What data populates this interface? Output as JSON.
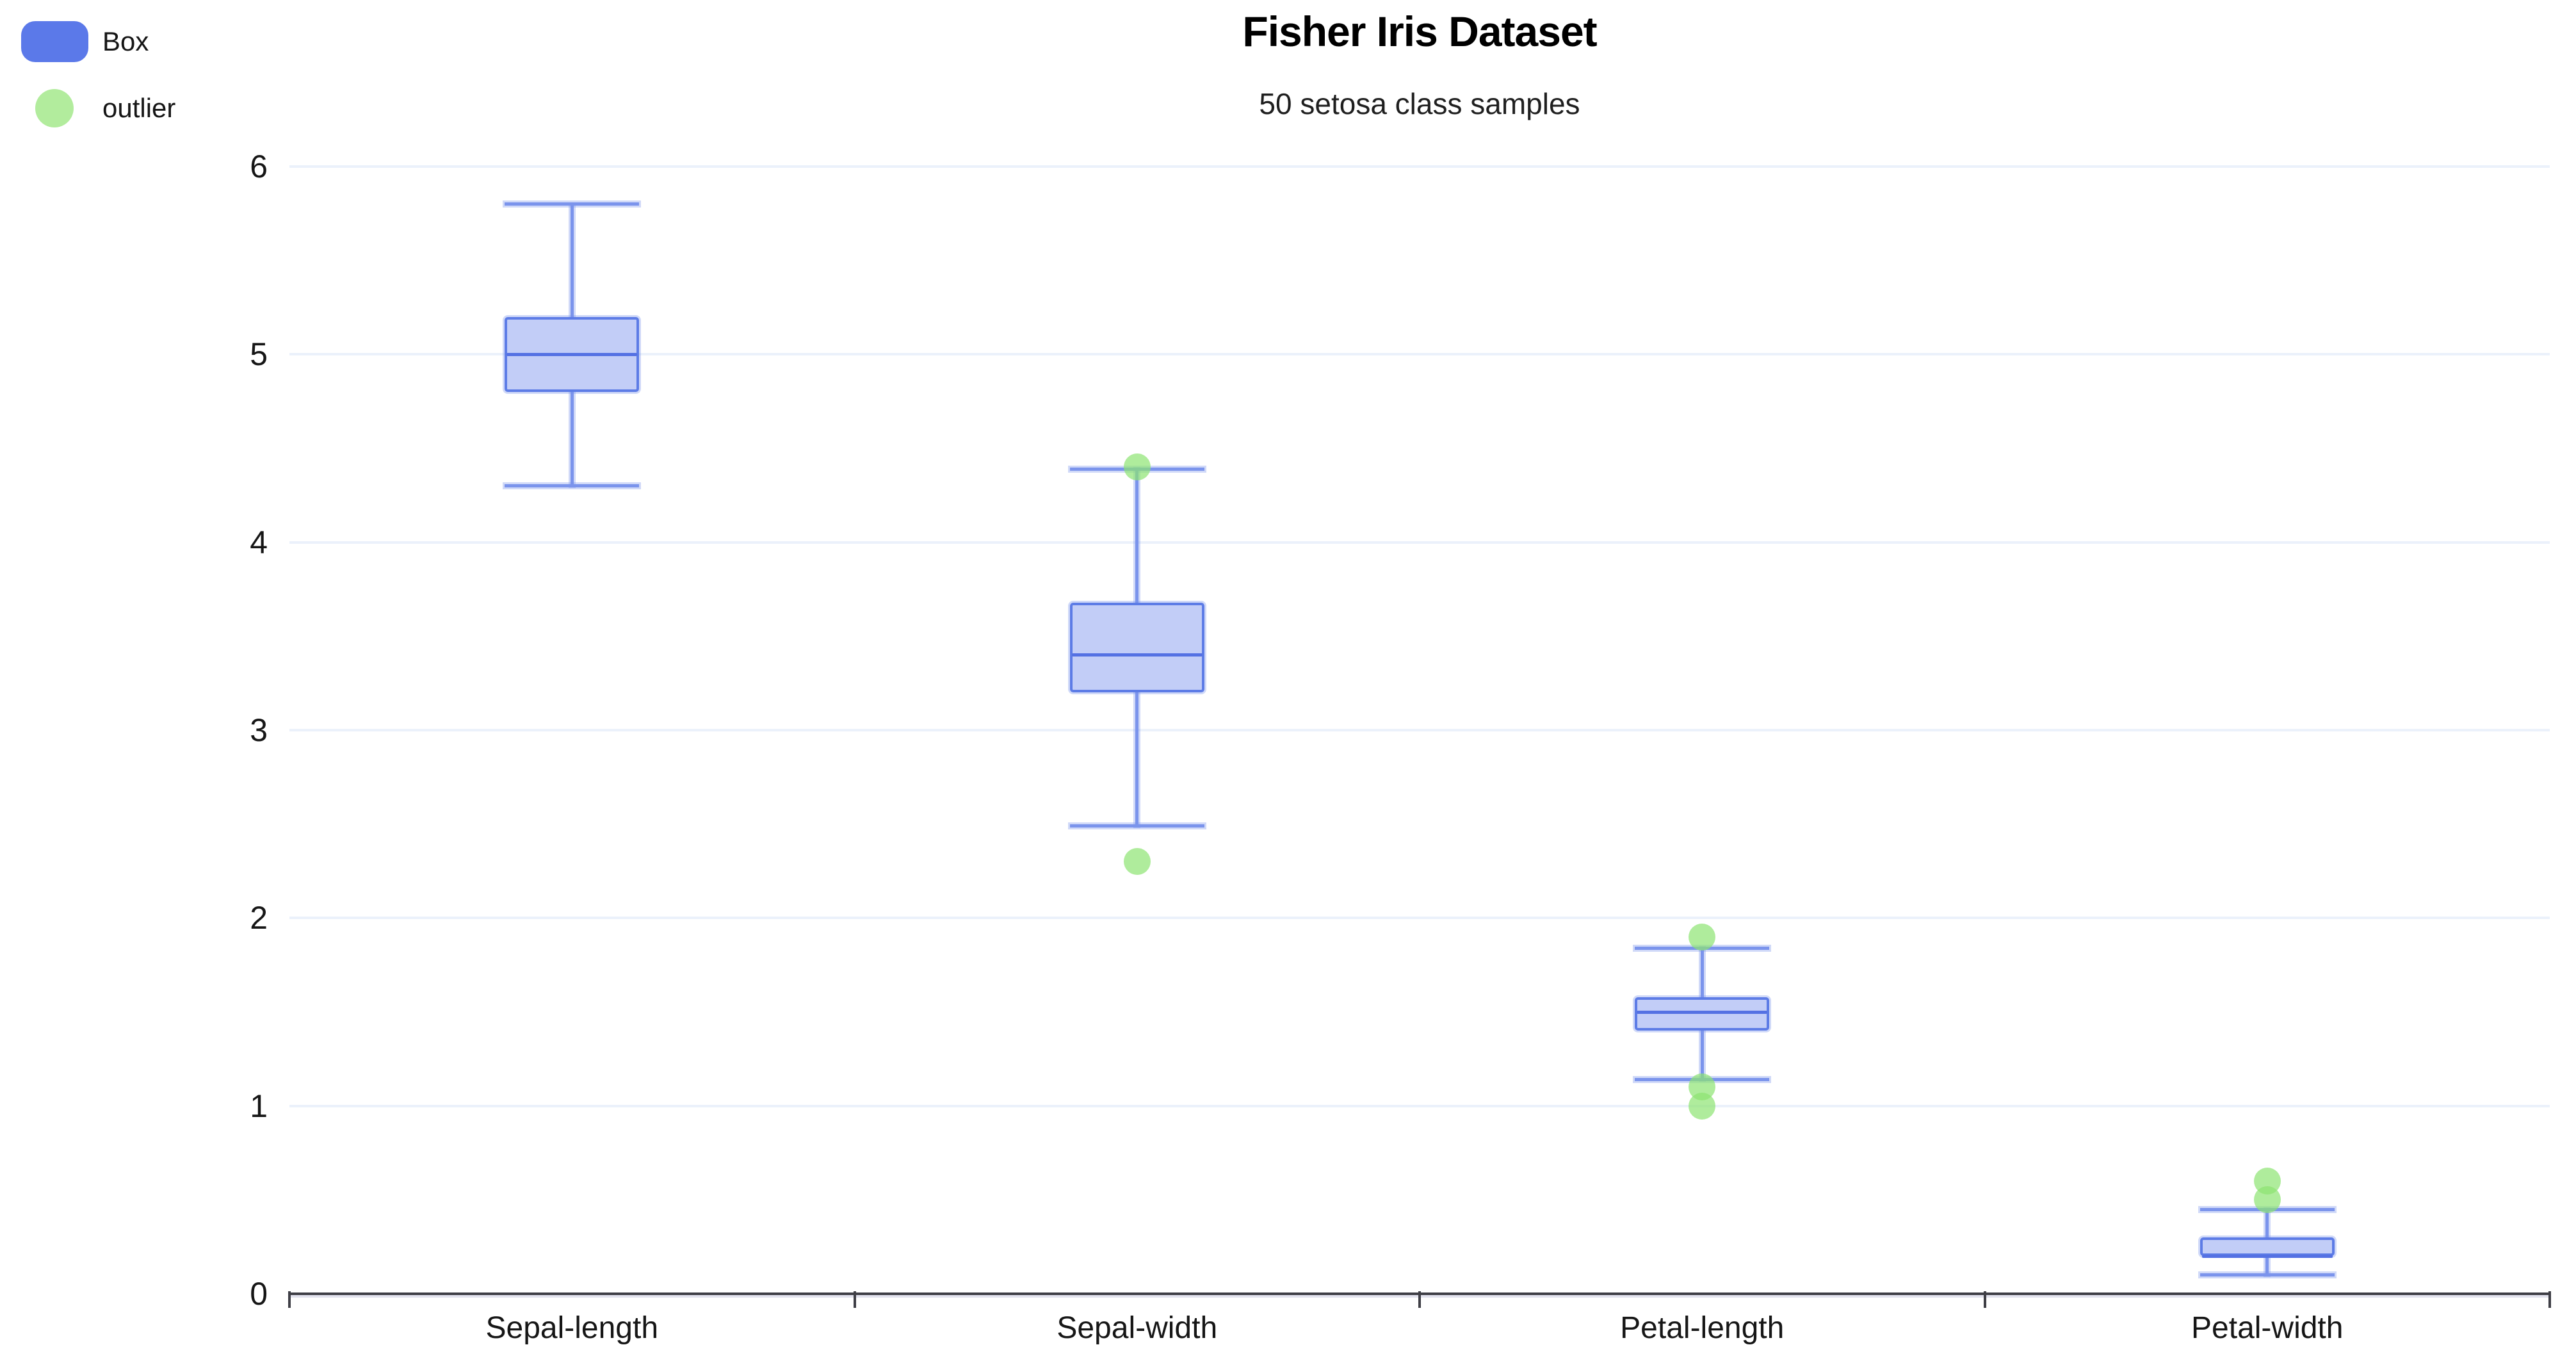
{
  "header": {
    "title": "Fisher Iris Dataset",
    "subtitle": "50 setosa class samples"
  },
  "legend": [
    {
      "label": "Box",
      "swatch": "rounded-rect",
      "color": "#5b79e9"
    },
    {
      "label": "outlier",
      "swatch": "circle",
      "color": "#b2ec9d"
    }
  ],
  "chart_data": {
    "type": "box",
    "title": "Fisher Iris Dataset",
    "subtitle": "50 setosa class samples",
    "categories": [
      "Sepal-length",
      "Sepal-width",
      "Petal-length",
      "Petal-width"
    ],
    "series": [
      {
        "category": "Sepal-length",
        "whisker_low": 4.3,
        "q1": 4.8,
        "median": 5.0,
        "q3": 5.2,
        "whisker_high": 5.8,
        "outliers": []
      },
      {
        "category": "Sepal-width",
        "whisker_low": 2.49,
        "q1": 3.2,
        "median": 3.4,
        "q3": 3.68,
        "whisker_high": 4.39,
        "outliers": [
          2.3,
          4.4
        ]
      },
      {
        "category": "Petal-length",
        "whisker_low": 1.14,
        "q1": 1.4,
        "median": 1.5,
        "q3": 1.58,
        "whisker_high": 1.84,
        "outliers": [
          1.0,
          1.1,
          1.9
        ]
      },
      {
        "category": "Petal-width",
        "whisker_low": 0.1,
        "q1": 0.2,
        "median": 0.2,
        "q3": 0.3,
        "whisker_high": 0.45,
        "outliers": [
          0.5,
          0.6
        ]
      }
    ],
    "y_axis": {
      "min": 0,
      "max": 6,
      "tick_step": 1,
      "tick_labels": [
        "0",
        "1",
        "2",
        "3",
        "4",
        "5",
        "6"
      ]
    },
    "x_axis": {
      "tick_count": 5
    },
    "grid": true,
    "legend_position": "top-left",
    "colors": {
      "box_fill": "#c2cdf7",
      "box_border": "#5d7ce6",
      "median": "#5471e3",
      "whisker": "#7b94ec",
      "whisker_halo": "rgba(121,146,235,0.35)",
      "outlier": "rgba(141,228,114,0.70)",
      "gridline": "#ebf1fb",
      "axis": "#3f3f46",
      "axis_shadow": "#e3e3ee",
      "text": "#161616"
    }
  }
}
